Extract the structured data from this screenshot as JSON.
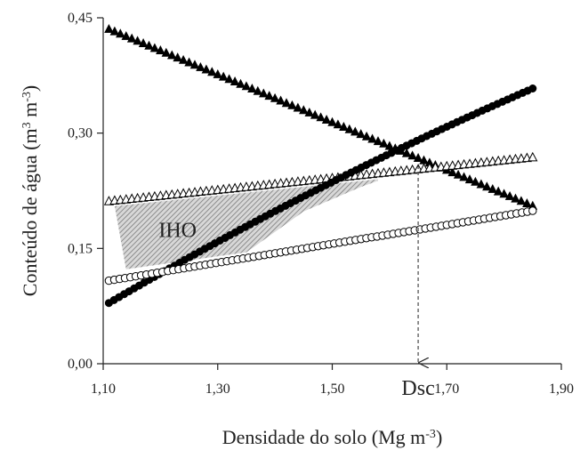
{
  "chart_data": {
    "type": "scatter",
    "title": "",
    "xlabel": "Densidade do solo (Mg m",
    "xlabel_sup": "-3",
    "xlabel_end": ")",
    "ylabel": "Conteúdo de água (m",
    "ylabel_sup1": "3",
    "ylabel_mid": " m",
    "ylabel_sup2": "-3",
    "ylabel_end": ")",
    "xlim": [
      1.1,
      1.9
    ],
    "ylim": [
      0.0,
      0.45
    ],
    "x_ticks": [
      1.1,
      1.3,
      1.5,
      1.7,
      1.9
    ],
    "y_ticks": [
      0.0,
      0.15,
      0.3,
      0.45
    ],
    "x_tick_labels": [
      "1,10",
      "1,30",
      "1,50",
      "1,70",
      "1,90"
    ],
    "y_tick_labels": [
      "0,00",
      "0,15",
      "0,30",
      "0,45"
    ],
    "grid": false,
    "legend": "none",
    "series": [
      {
        "marker": "filled-triangle",
        "x_range": [
          1.11,
          1.85
        ],
        "y_range": [
          0.435,
          0.205
        ],
        "n": 75
      },
      {
        "marker": "open-triangle",
        "x_range": [
          1.11,
          1.85
        ],
        "y_range": [
          0.211,
          0.268
        ],
        "n": 75
      },
      {
        "marker": "filled-circle",
        "x_range": [
          1.11,
          1.85
        ],
        "y_range": [
          0.079,
          0.358
        ],
        "n": 85,
        "curvature": 0.3
      },
      {
        "marker": "open-circle",
        "x_range": [
          1.11,
          1.85
        ],
        "y_range": [
          0.108,
          0.199
        ],
        "n": 80
      }
    ],
    "annotations": [
      {
        "text": "IHO",
        "x": 1.23,
        "y": 0.175,
        "type": "shaded-region"
      },
      {
        "text": "Dsc",
        "x": 1.65,
        "y": 0.0,
        "type": "dashed-arrow",
        "from_y": 0.258
      }
    ],
    "colors": {
      "marker": "#000000",
      "hatch": "#8a8a8a"
    }
  }
}
